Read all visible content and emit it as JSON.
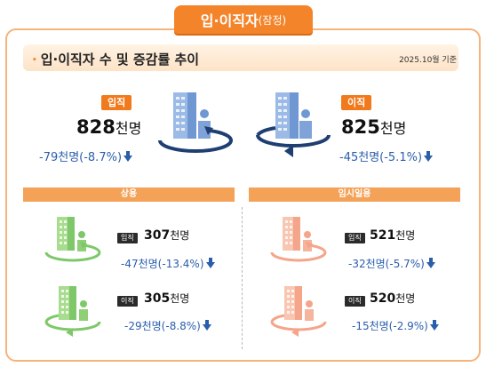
{
  "tab": {
    "title": "입·이직자",
    "suffix": "(잠정)"
  },
  "header": {
    "title": "입·이직자 수 및 증감률 추이",
    "reference": "2025.10월 기준"
  },
  "main": {
    "hire": {
      "label": "입직",
      "value": "828",
      "unit": "천명",
      "change": "-79천명(-8.7%)"
    },
    "separation": {
      "label": "이직",
      "value": "825",
      "unit": "천명",
      "change": "-45천명(-5.1%)"
    }
  },
  "regular": {
    "title": "상용",
    "hire": {
      "label": "입직",
      "value": "307",
      "unit": "천명",
      "change": "-47천명(-13.4%)"
    },
    "separation": {
      "label": "이직",
      "value": "305",
      "unit": "천명",
      "change": "-29천명(-8.8%)"
    }
  },
  "temporary": {
    "title": "임시일용",
    "hire": {
      "label": "입직",
      "value": "521",
      "unit": "천명",
      "change": "-32천명(-5.7%)"
    },
    "separation": {
      "label": "이직",
      "value": "520",
      "unit": "천명",
      "change": "-15천명(-2.9%)"
    }
  },
  "colors": {
    "accent": "#f4842a",
    "change_blue": "#2a5eab",
    "green": "#7ec86a",
    "salmon": "#f4a58a",
    "navy": "#1f3f72"
  }
}
